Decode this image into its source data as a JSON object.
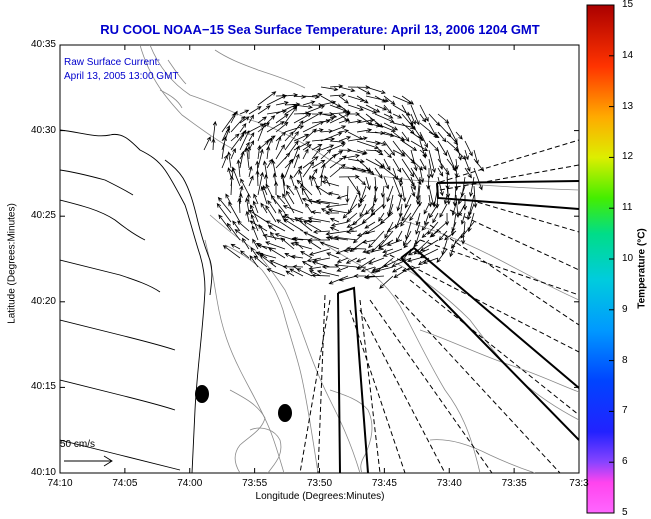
{
  "title": "RU COOL  NOAA−15  Sea Surface Temperature:  April 13, 2006 1204 GMT",
  "annotation": {
    "line1": "Raw Surface Current:",
    "line2": "April 13, 2005 13:00 GMT"
  },
  "scale_label": "50 cm/s",
  "colorbar": {
    "label": "Temperature (°C)",
    "min": 5,
    "max": 15,
    "ticks": [
      "15",
      "14",
      "13",
      "12",
      "11",
      "10",
      "9",
      "8",
      "7",
      "6",
      "5"
    ]
  },
  "axes": {
    "xlabel": "Longitude (Degrees:Minutes)",
    "ylabel": "Latitude (Degrees:Minutes)",
    "x_ticks": [
      "74:10",
      "74:05",
      "74:00",
      "73:55",
      "73:50",
      "73:45",
      "73:40",
      "73:35",
      "73:3"
    ],
    "y_ticks": [
      "40:35",
      "40:30",
      "40:25",
      "40:20",
      "40:15",
      "40:10"
    ]
  },
  "colors": {
    "title": "#0000cc",
    "vectors": "#000000",
    "contours": "#8a8a8a"
  }
}
